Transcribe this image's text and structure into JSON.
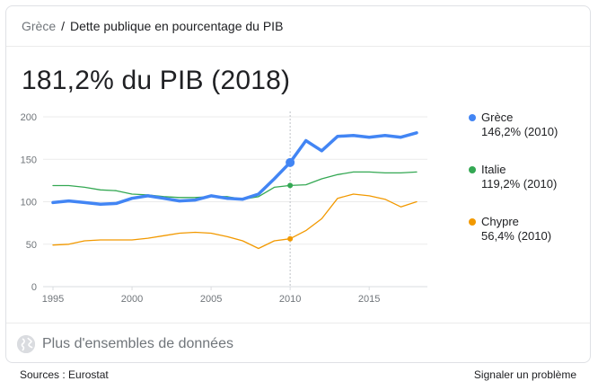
{
  "breadcrumb": {
    "root": "Grèce",
    "separator": "/",
    "current": "Dette publique en pourcentage du PIB"
  },
  "headline": "181,2% du PIB (2018)",
  "legend": [
    {
      "name": "Grèce",
      "value": "146,2% (2010)",
      "color": "#4285f4"
    },
    {
      "name": "Italie",
      "value": "119,2% (2010)",
      "color": "#34a853"
    },
    {
      "name": "Chypre",
      "value": "56,4% (2010)",
      "color": "#f29900"
    }
  ],
  "more_data": {
    "label": "Plus d'ensembles de données",
    "icon": "globe-icon"
  },
  "footer": {
    "sources": "Sources : Eurostat",
    "report": "Signaler un problème"
  },
  "chart_data": {
    "type": "line",
    "x": [
      1995,
      1996,
      1997,
      1998,
      1999,
      2000,
      2001,
      2002,
      2003,
      2004,
      2005,
      2006,
      2007,
      2008,
      2009,
      2010,
      2011,
      2012,
      2013,
      2014,
      2015,
      2016,
      2017,
      2018
    ],
    "series": [
      {
        "name": "Grèce",
        "color": "#4285f4",
        "values": [
          99,
          101,
          99,
          97,
          98,
          104,
          107,
          104,
          101,
          102,
          107,
          104,
          103,
          109,
          127,
          146.2,
          172,
          160,
          177,
          178,
          176,
          178,
          176,
          181.2
        ]
      },
      {
        "name": "Italie",
        "color": "#34a853",
        "values": [
          119,
          119,
          117,
          114,
          113,
          109,
          108,
          106,
          105,
          105,
          106,
          106,
          103,
          106,
          117,
          119.2,
          120,
          127,
          132,
          135,
          135,
          134,
          134,
          135
        ]
      },
      {
        "name": "Chypre",
        "color": "#f29900",
        "values": [
          49,
          50,
          54,
          55,
          55,
          55,
          57,
          60,
          63,
          64,
          63,
          59,
          54,
          45,
          54,
          56.4,
          66,
          80,
          104,
          109,
          107,
          103,
          94,
          100
        ]
      }
    ],
    "highlight_x": 2010,
    "xticks": [
      1995,
      2000,
      2005,
      2010,
      2015
    ],
    "xtick_labels": [
      "1995",
      "2000",
      "2005",
      "2010",
      "2015"
    ],
    "yticks": [
      0,
      50,
      100,
      150,
      200
    ],
    "ytick_labels": [
      "0",
      "50",
      "100",
      "150",
      "200"
    ],
    "xlim": [
      1995,
      2018
    ],
    "ylim": [
      0,
      200
    ],
    "grid": true,
    "legend_position": "right"
  }
}
